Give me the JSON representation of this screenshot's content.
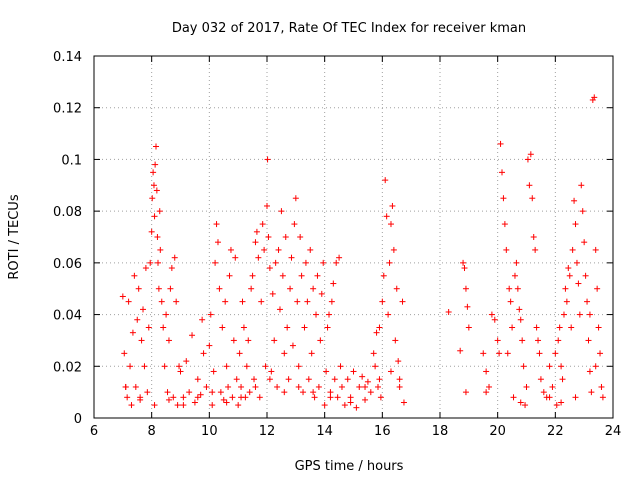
{
  "chart_data": {
    "type": "scatter",
    "title": "Day 032 of 2017, Rate Of TEC Index for receiver kman",
    "xlabel": "GPS time / hours",
    "ylabel": "ROTI / TECUs",
    "xlim": [
      6,
      24
    ],
    "ylim": [
      0,
      0.14
    ],
    "xticks": [
      6,
      8,
      10,
      12,
      14,
      16,
      18,
      20,
      22,
      24
    ],
    "xtick_labels": [
      "6",
      "8",
      "10",
      "12",
      "14",
      "16",
      "18",
      "20",
      "22",
      "24"
    ],
    "yticks": [
      0,
      0.02,
      0.04,
      0.06,
      0.08,
      0.1,
      0.12,
      0.14
    ],
    "ytick_labels": [
      "0",
      "0.02",
      "0.04",
      "0.06",
      "0.08",
      "0.1",
      "0.12",
      "0.14"
    ],
    "grid": true,
    "marker": "plus",
    "color": "#ff0000",
    "points": [
      [
        7.0,
        0.047
      ],
      [
        7.05,
        0.025
      ],
      [
        7.1,
        0.012
      ],
      [
        7.15,
        0.008
      ],
      [
        7.2,
        0.045
      ],
      [
        7.25,
        0.02
      ],
      [
        7.3,
        0.005
      ],
      [
        7.35,
        0.033
      ],
      [
        7.4,
        0.055
      ],
      [
        7.45,
        0.012
      ],
      [
        7.5,
        0.038
      ],
      [
        7.55,
        0.05
      ],
      [
        7.6,
        0.007
      ],
      [
        7.65,
        0.03
      ],
      [
        7.7,
        0.042
      ],
      [
        7.75,
        0.02
      ],
      [
        7.8,
        0.058
      ],
      [
        7.85,
        0.01
      ],
      [
        7.9,
        0.035
      ],
      [
        7.95,
        0.06
      ],
      [
        8.0,
        0.072
      ],
      [
        8.02,
        0.085
      ],
      [
        8.05,
        0.095
      ],
      [
        8.08,
        0.09
      ],
      [
        8.1,
        0.078
      ],
      [
        8.12,
        0.098
      ],
      [
        8.15,
        0.105
      ],
      [
        8.18,
        0.088
      ],
      [
        8.2,
        0.07
      ],
      [
        8.22,
        0.06
      ],
      [
        8.25,
        0.05
      ],
      [
        8.28,
        0.08
      ],
      [
        8.3,
        0.065
      ],
      [
        8.35,
        0.045
      ],
      [
        8.4,
        0.035
      ],
      [
        8.45,
        0.02
      ],
      [
        8.5,
        0.04
      ],
      [
        8.55,
        0.01
      ],
      [
        8.6,
        0.03
      ],
      [
        8.65,
        0.05
      ],
      [
        8.7,
        0.058
      ],
      [
        8.75,
        0.008
      ],
      [
        8.8,
        0.062
      ],
      [
        8.85,
        0.045
      ],
      [
        8.9,
        0.005
      ],
      [
        8.95,
        0.02
      ],
      [
        9.0,
        0.018
      ],
      [
        9.1,
        0.008
      ],
      [
        9.2,
        0.022
      ],
      [
        9.3,
        0.01
      ],
      [
        9.4,
        0.032
      ],
      [
        9.5,
        0.006
      ],
      [
        9.6,
        0.015
      ],
      [
        9.7,
        0.009
      ],
      [
        9.75,
        0.038
      ],
      [
        9.8,
        0.025
      ],
      [
        9.9,
        0.012
      ],
      [
        10.0,
        0.028
      ],
      [
        10.05,
        0.04
      ],
      [
        10.1,
        0.005
      ],
      [
        10.15,
        0.018
      ],
      [
        10.2,
        0.06
      ],
      [
        10.25,
        0.075
      ],
      [
        10.3,
        0.068
      ],
      [
        10.35,
        0.05
      ],
      [
        10.4,
        0.01
      ],
      [
        10.45,
        0.035
      ],
      [
        10.5,
        0.007
      ],
      [
        10.55,
        0.045
      ],
      [
        10.6,
        0.02
      ],
      [
        10.65,
        0.012
      ],
      [
        10.7,
        0.055
      ],
      [
        10.75,
        0.065
      ],
      [
        10.8,
        0.008
      ],
      [
        10.85,
        0.03
      ],
      [
        10.9,
        0.062
      ],
      [
        10.95,
        0.015
      ],
      [
        11.0,
        0.005
      ],
      [
        11.05,
        0.025
      ],
      [
        11.1,
        0.012
      ],
      [
        11.15,
        0.045
      ],
      [
        11.2,
        0.035
      ],
      [
        11.25,
        0.008
      ],
      [
        11.3,
        0.02
      ],
      [
        11.35,
        0.03
      ],
      [
        11.4,
        0.01
      ],
      [
        11.45,
        0.05
      ],
      [
        11.5,
        0.055
      ],
      [
        11.55,
        0.015
      ],
      [
        11.6,
        0.068
      ],
      [
        11.65,
        0.072
      ],
      [
        11.7,
        0.062
      ],
      [
        11.75,
        0.008
      ],
      [
        11.8,
        0.045
      ],
      [
        11.85,
        0.075
      ],
      [
        11.9,
        0.065
      ],
      [
        11.95,
        0.02
      ],
      [
        12.0,
        0.082
      ],
      [
        12.02,
        0.1
      ],
      [
        12.05,
        0.07
      ],
      [
        12.1,
        0.058
      ],
      [
        12.15,
        0.018
      ],
      [
        12.2,
        0.048
      ],
      [
        12.25,
        0.03
      ],
      [
        12.3,
        0.06
      ],
      [
        12.35,
        0.012
      ],
      [
        12.4,
        0.065
      ],
      [
        12.45,
        0.042
      ],
      [
        12.5,
        0.08
      ],
      [
        12.55,
        0.055
      ],
      [
        12.6,
        0.025
      ],
      [
        12.65,
        0.07
      ],
      [
        12.7,
        0.035
      ],
      [
        12.75,
        0.015
      ],
      [
        12.8,
        0.05
      ],
      [
        12.85,
        0.062
      ],
      [
        12.9,
        0.028
      ],
      [
        12.95,
        0.075
      ],
      [
        13.0,
        0.085
      ],
      [
        13.05,
        0.045
      ],
      [
        13.1,
        0.02
      ],
      [
        13.15,
        0.07
      ],
      [
        13.2,
        0.055
      ],
      [
        13.25,
        0.01
      ],
      [
        13.3,
        0.035
      ],
      [
        13.35,
        0.06
      ],
      [
        13.4,
        0.045
      ],
      [
        13.45,
        0.015
      ],
      [
        13.5,
        0.065
      ],
      [
        13.55,
        0.025
      ],
      [
        13.6,
        0.05
      ],
      [
        13.65,
        0.008
      ],
      [
        13.7,
        0.04
      ],
      [
        13.75,
        0.055
      ],
      [
        13.8,
        0.012
      ],
      [
        13.85,
        0.03
      ],
      [
        13.9,
        0.048
      ],
      [
        13.95,
        0.06
      ],
      [
        14.0,
        0.005
      ],
      [
        14.05,
        0.018
      ],
      [
        14.1,
        0.035
      ],
      [
        14.15,
        0.04
      ],
      [
        14.2,
        0.01
      ],
      [
        14.25,
        0.045
      ],
      [
        14.3,
        0.052
      ],
      [
        14.35,
        0.015
      ],
      [
        14.4,
        0.06
      ],
      [
        14.45,
        0.008
      ],
      [
        14.5,
        0.062
      ],
      [
        14.55,
        0.02
      ],
      [
        14.6,
        0.012
      ],
      [
        14.7,
        0.005
      ],
      [
        14.8,
        0.015
      ],
      [
        14.9,
        0.008
      ],
      [
        15.0,
        0.018
      ],
      [
        15.1,
        0.004
      ],
      [
        15.2,
        0.012
      ],
      [
        15.3,
        0.016
      ],
      [
        15.4,
        0.007
      ],
      [
        15.5,
        0.014
      ],
      [
        15.6,
        0.01
      ],
      [
        15.7,
        0.025
      ],
      [
        15.75,
        0.02
      ],
      [
        15.8,
        0.033
      ],
      [
        15.85,
        0.012
      ],
      [
        15.9,
        0.035
      ],
      [
        15.95,
        0.008
      ],
      [
        16.0,
        0.045
      ],
      [
        16.05,
        0.055
      ],
      [
        16.1,
        0.092
      ],
      [
        16.15,
        0.078
      ],
      [
        16.2,
        0.04
      ],
      [
        16.25,
        0.06
      ],
      [
        16.3,
        0.075
      ],
      [
        16.35,
        0.082
      ],
      [
        16.4,
        0.065
      ],
      [
        16.45,
        0.03
      ],
      [
        16.5,
        0.05
      ],
      [
        16.55,
        0.022
      ],
      [
        16.6,
        0.015
      ],
      [
        16.7,
        0.045
      ],
      [
        16.75,
        0.006
      ],
      [
        18.3,
        0.041
      ],
      [
        18.7,
        0.026
      ],
      [
        18.8,
        0.06
      ],
      [
        18.85,
        0.058
      ],
      [
        18.9,
        0.05
      ],
      [
        18.95,
        0.043
      ],
      [
        19.0,
        0.035
      ],
      [
        18.9,
        0.01
      ],
      [
        19.5,
        0.025
      ],
      [
        19.6,
        0.018
      ],
      [
        19.7,
        0.012
      ],
      [
        19.8,
        0.04
      ],
      [
        19.9,
        0.038
      ],
      [
        20.0,
        0.03
      ],
      [
        20.05,
        0.025
      ],
      [
        20.1,
        0.106
      ],
      [
        20.15,
        0.095
      ],
      [
        20.2,
        0.085
      ],
      [
        20.25,
        0.075
      ],
      [
        20.3,
        0.065
      ],
      [
        20.35,
        0.025
      ],
      [
        20.4,
        0.05
      ],
      [
        20.45,
        0.045
      ],
      [
        20.5,
        0.035
      ],
      [
        20.55,
        0.008
      ],
      [
        20.6,
        0.055
      ],
      [
        20.65,
        0.06
      ],
      [
        20.7,
        0.05
      ],
      [
        20.75,
        0.042
      ],
      [
        20.8,
        0.038
      ],
      [
        20.85,
        0.03
      ],
      [
        20.9,
        0.02
      ],
      [
        20.95,
        0.005
      ],
      [
        21.0,
        0.012
      ],
      [
        21.05,
        0.1
      ],
      [
        21.1,
        0.09
      ],
      [
        21.15,
        0.102
      ],
      [
        21.2,
        0.085
      ],
      [
        21.25,
        0.07
      ],
      [
        21.3,
        0.065
      ],
      [
        21.35,
        0.035
      ],
      [
        21.4,
        0.03
      ],
      [
        21.45,
        0.025
      ],
      [
        21.5,
        0.015
      ],
      [
        21.6,
        0.01
      ],
      [
        21.7,
        0.008
      ],
      [
        21.8,
        0.02
      ],
      [
        21.9,
        0.012
      ],
      [
        22.0,
        0.025
      ],
      [
        22.05,
        0.005
      ],
      [
        22.1,
        0.03
      ],
      [
        22.15,
        0.035
      ],
      [
        22.2,
        0.02
      ],
      [
        22.25,
        0.015
      ],
      [
        22.3,
        0.04
      ],
      [
        22.35,
        0.05
      ],
      [
        22.4,
        0.045
      ],
      [
        22.45,
        0.058
      ],
      [
        22.5,
        0.055
      ],
      [
        22.55,
        0.035
      ],
      [
        22.6,
        0.065
      ],
      [
        22.65,
        0.084
      ],
      [
        22.7,
        0.075
      ],
      [
        22.75,
        0.06
      ],
      [
        22.8,
        0.052
      ],
      [
        22.85,
        0.04
      ],
      [
        22.9,
        0.09
      ],
      [
        22.95,
        0.08
      ],
      [
        23.0,
        0.068
      ],
      [
        23.05,
        0.055
      ],
      [
        23.1,
        0.045
      ],
      [
        23.15,
        0.03
      ],
      [
        23.2,
        0.018
      ],
      [
        23.25,
        0.01
      ],
      [
        23.3,
        0.123
      ],
      [
        23.35,
        0.124
      ],
      [
        23.4,
        0.065
      ],
      [
        23.45,
        0.05
      ],
      [
        23.5,
        0.035
      ],
      [
        23.55,
        0.025
      ],
      [
        23.6,
        0.012
      ],
      [
        23.65,
        0.008
      ],
      [
        23.2,
        0.04
      ],
      [
        23.4,
        0.02
      ],
      [
        22.7,
        0.008
      ],
      [
        22.2,
        0.006
      ],
      [
        21.8,
        0.008
      ],
      [
        20.8,
        0.006
      ],
      [
        19.6,
        0.01
      ],
      [
        16.6,
        0.012
      ],
      [
        16.3,
        0.018
      ],
      [
        15.9,
        0.015
      ],
      [
        15.4,
        0.012
      ],
      [
        14.9,
        0.006
      ],
      [
        14.2,
        0.008
      ],
      [
        13.6,
        0.01
      ],
      [
        13.1,
        0.012
      ],
      [
        12.6,
        0.01
      ],
      [
        12.1,
        0.015
      ],
      [
        11.6,
        0.012
      ],
      [
        11.1,
        0.008
      ],
      [
        10.6,
        0.006
      ],
      [
        10.1,
        0.01
      ],
      [
        9.6,
        0.008
      ],
      [
        9.1,
        0.005
      ],
      [
        8.6,
        0.007
      ],
      [
        8.1,
        0.005
      ],
      [
        7.6,
        0.008
      ],
      [
        7.1,
        0.012
      ]
    ]
  }
}
